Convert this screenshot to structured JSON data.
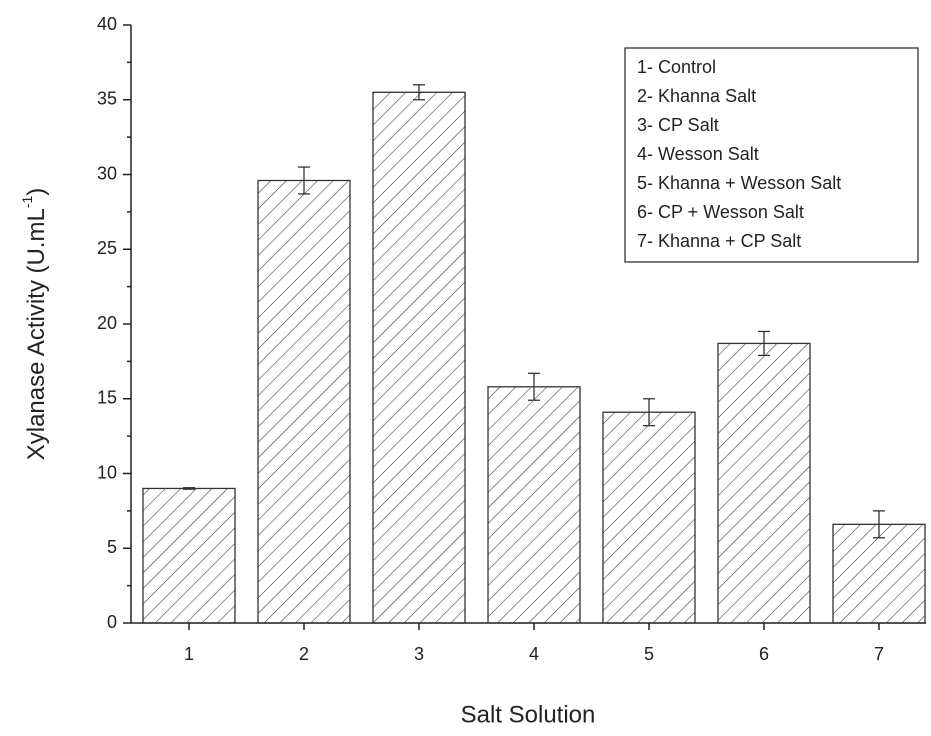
{
  "chart_data": {
    "type": "bar",
    "x_label": "Salt Solution",
    "y_label": [
      "Xylanase Activity (U.mL",
      "-1",
      ")"
    ],
    "categories": [
      "1",
      "2",
      "3",
      "4",
      "5",
      "6",
      "7"
    ],
    "values": [
      9.0,
      29.6,
      35.5,
      15.8,
      14.1,
      18.7,
      6.6
    ],
    "errors": [
      0.05,
      0.9,
      0.5,
      0.9,
      0.9,
      0.8,
      0.9
    ],
    "color": "#333333",
    "hatch": "diagonal",
    "ylim": [
      0,
      40
    ],
    "yticks": [
      0,
      5,
      10,
      15,
      20,
      25,
      30,
      35,
      40
    ],
    "legend_position": "upper right",
    "legend_entries": [
      "1- Control",
      "2- Khanna Salt",
      "3- CP Salt",
      "4- Wesson Salt",
      "5- Khanna + Wesson Salt",
      "6- CP + Wesson Salt",
      "7- Khanna + CP Salt"
    ]
  }
}
